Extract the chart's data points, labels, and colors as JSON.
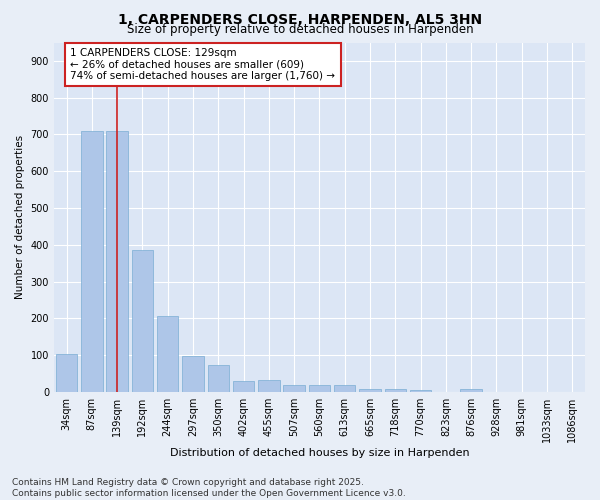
{
  "title": "1, CARPENDERS CLOSE, HARPENDEN, AL5 3HN",
  "subtitle": "Size of property relative to detached houses in Harpenden",
  "xlabel": "Distribution of detached houses by size in Harpenden",
  "ylabel": "Number of detached properties",
  "categories": [
    "34sqm",
    "87sqm",
    "139sqm",
    "192sqm",
    "244sqm",
    "297sqm",
    "350sqm",
    "402sqm",
    "455sqm",
    "507sqm",
    "560sqm",
    "613sqm",
    "665sqm",
    "718sqm",
    "770sqm",
    "823sqm",
    "876sqm",
    "928sqm",
    "981sqm",
    "1033sqm",
    "1086sqm"
  ],
  "values": [
    102,
    710,
    710,
    385,
    207,
    97,
    72,
    30,
    32,
    18,
    18,
    18,
    8,
    7,
    6,
    0,
    8,
    0,
    0,
    0,
    0
  ],
  "bar_color": "#aec6e8",
  "bar_edge_color": "#7aadd4",
  "marker_line_index": 2,
  "marker_line_color": "#cc2222",
  "annotation_text": "1 CARPENDERS CLOSE: 129sqm\n← 26% of detached houses are smaller (609)\n74% of semi-detached houses are larger (1,760) →",
  "annotation_box_color": "#ffffff",
  "annotation_box_edge_color": "#cc2222",
  "ylim": [
    0,
    950
  ],
  "yticks": [
    0,
    100,
    200,
    300,
    400,
    500,
    600,
    700,
    800,
    900
  ],
  "bg_color": "#e8eef7",
  "plot_bg_color": "#dce6f5",
  "grid_color": "#ffffff",
  "footer_text": "Contains HM Land Registry data © Crown copyright and database right 2025.\nContains public sector information licensed under the Open Government Licence v3.0.",
  "title_fontsize": 10,
  "subtitle_fontsize": 8.5,
  "xlabel_fontsize": 8,
  "ylabel_fontsize": 7.5,
  "tick_fontsize": 7,
  "annotation_fontsize": 7.5,
  "footer_fontsize": 6.5
}
